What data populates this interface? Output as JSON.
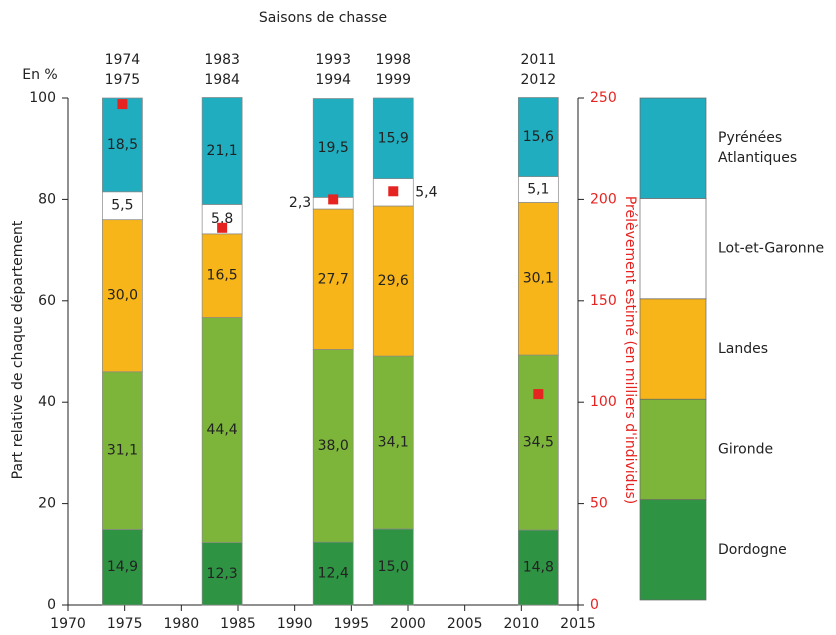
{
  "chart_data": {
    "type": "stacked_bar",
    "title": "Saisons de chasse",
    "unit_label": "En %",
    "y_label": "Part relative de chaque département",
    "y2_label": "Prélèvement estimé (en milliers d'individus)",
    "season_labels": [
      [
        "1974",
        "1975"
      ],
      [
        "1983",
        "1984"
      ],
      [
        "1993",
        "1994"
      ],
      [
        "1998",
        "1999"
      ],
      [
        "2011",
        "2012"
      ]
    ],
    "x": [
      1974.8,
      1983.6,
      1993.4,
      1998.7,
      2011.5
    ],
    "series": [
      {
        "name": "Dordogne",
        "color": "#2e9444",
        "values": [
          14.9,
          12.3,
          12.4,
          15.0,
          14.8
        ],
        "value_labels": [
          "14,9",
          "12,3",
          "12,4",
          "15,0",
          "14,8"
        ]
      },
      {
        "name": "Gironde",
        "color": "#7db53a",
        "values": [
          31.1,
          44.4,
          38.0,
          34.1,
          34.5
        ],
        "value_labels": [
          "31,1",
          "44,4",
          "38,0",
          "34,1",
          "34,5"
        ]
      },
      {
        "name": "Landes",
        "color": "#f7b519",
        "values": [
          30.0,
          16.5,
          27.7,
          29.6,
          30.1
        ],
        "value_labels": [
          "30,0",
          "16,5",
          "27,7",
          "29,6",
          "30,1"
        ]
      },
      {
        "name": "Lot-et-Garonne",
        "color": "#ffffff",
        "values": [
          5.5,
          5.8,
          2.3,
          5.4,
          5.1
        ],
        "value_labels": [
          "5,5",
          "5,8",
          "2,3",
          "5,4",
          "5,1"
        ]
      },
      {
        "name": "Pyrénées Atlantiques",
        "color": "#1fadbf",
        "values": [
          18.5,
          21.1,
          19.5,
          15.9,
          15.6
        ],
        "value_labels": [
          "18,5",
          "21,1",
          "19,5",
          "15,9",
          "15,6"
        ]
      },
      {
        "type": "scatter",
        "axis": "y2",
        "color": "#e52421",
        "values": [
          247,
          186,
          200,
          204,
          104
        ]
      }
    ],
    "xlim": [
      1970,
      2015
    ],
    "xticks": [
      1970,
      1975,
      1980,
      1985,
      1990,
      1995,
      2000,
      2005,
      2010,
      2015
    ],
    "ylim": [
      0,
      100
    ],
    "yticks": [
      0,
      20,
      40,
      60,
      80,
      100
    ],
    "y2lim": [
      0,
      250
    ],
    "y2ticks": [
      0,
      50,
      100,
      150,
      200,
      250
    ],
    "y2_color": "#e52421",
    "grid": false
  }
}
